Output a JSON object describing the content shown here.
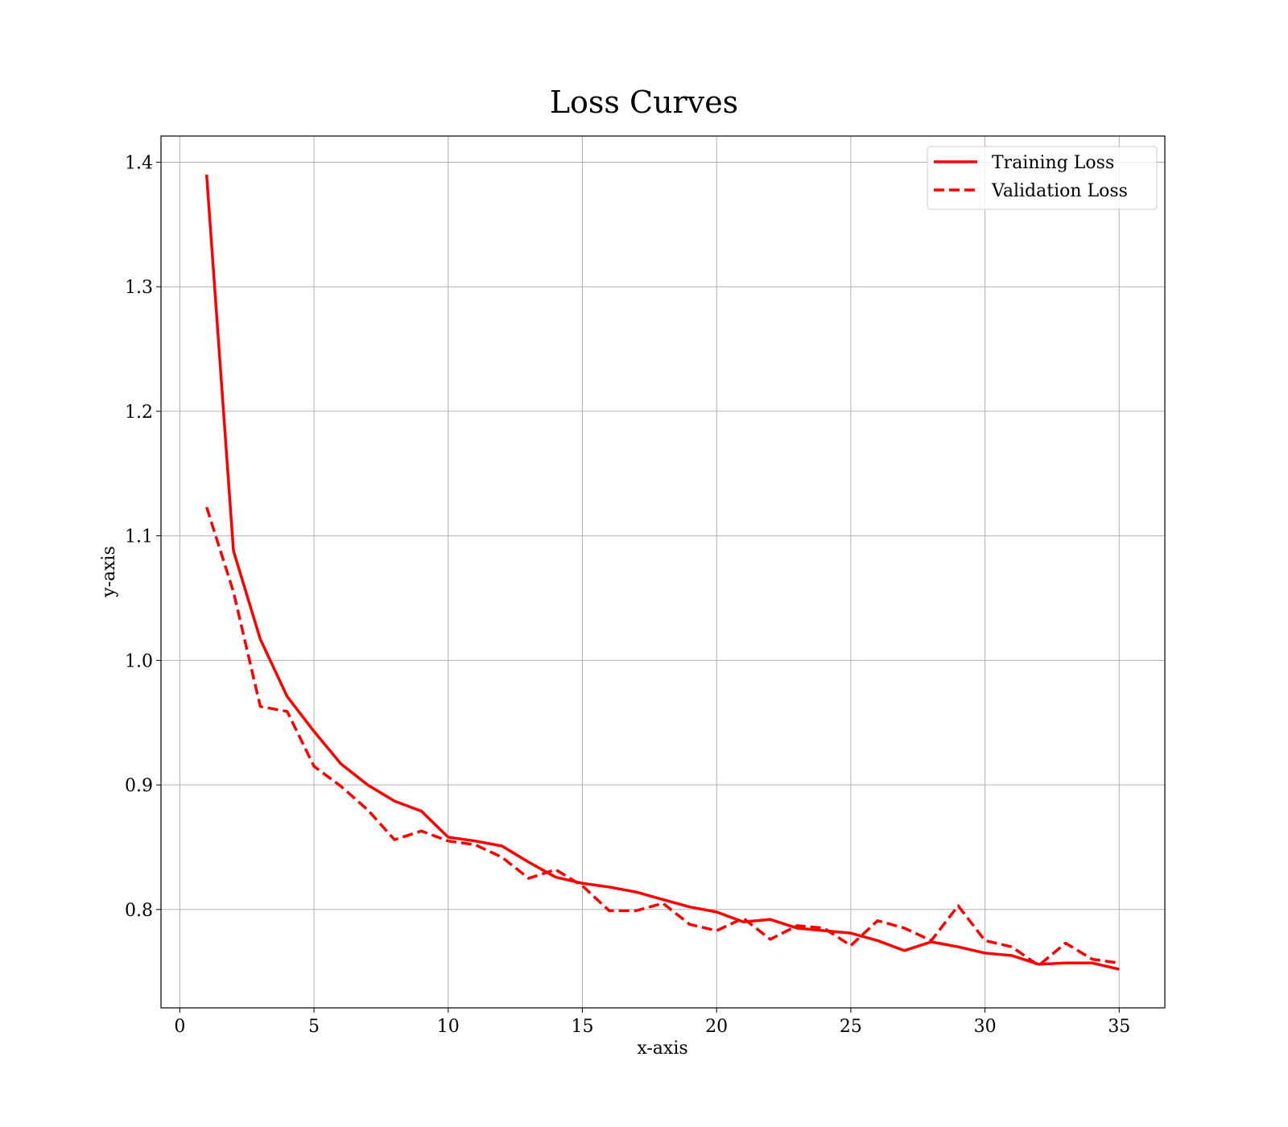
{
  "chart_data": {
    "type": "line",
    "title": "Loss Curves",
    "xlabel": "x-axis",
    "ylabel": "y-axis",
    "xlim": [
      -0.7,
      36.7
    ],
    "ylim": [
      0.721,
      1.421
    ],
    "xticks": [
      0,
      5,
      10,
      15,
      20,
      25,
      30,
      35
    ],
    "xtick_labels": [
      "0",
      "5",
      "10",
      "15",
      "20",
      "25",
      "30",
      "35"
    ],
    "yticks": [
      0.8,
      0.9,
      1.0,
      1.1,
      1.2,
      1.3,
      1.4
    ],
    "ytick_labels": [
      "0.8",
      "0.9",
      "1.0",
      "1.1",
      "1.2",
      "1.3",
      "1.4"
    ],
    "grid": true,
    "legend_position": "top-right",
    "x": [
      1,
      2,
      3,
      4,
      5,
      6,
      7,
      8,
      9,
      10,
      11,
      12,
      13,
      14,
      15,
      16,
      17,
      18,
      19,
      20,
      21,
      22,
      23,
      24,
      25,
      26,
      27,
      28,
      29,
      30,
      31,
      32,
      33,
      34,
      35
    ],
    "series": [
      {
        "name": "Training Loss",
        "style": "solid",
        "color": "#ff0000",
        "values": [
          1.39,
          1.088,
          1.017,
          0.971,
          0.943,
          0.917,
          0.9,
          0.887,
          0.879,
          0.858,
          0.855,
          0.851,
          0.838,
          0.826,
          0.821,
          0.818,
          0.814,
          0.808,
          0.802,
          0.798,
          0.79,
          0.792,
          0.785,
          0.783,
          0.781,
          0.775,
          0.767,
          0.774,
          0.77,
          0.765,
          0.763,
          0.756,
          0.757,
          0.757,
          0.752
        ]
      },
      {
        "name": "Validation Loss",
        "style": "dashed",
        "color": "#ff0000",
        "values": [
          1.123,
          1.055,
          0.963,
          0.959,
          0.915,
          0.899,
          0.88,
          0.856,
          0.863,
          0.855,
          0.852,
          0.842,
          0.825,
          0.832,
          0.819,
          0.799,
          0.799,
          0.805,
          0.788,
          0.783,
          0.793,
          0.776,
          0.787,
          0.785,
          0.771,
          0.791,
          0.785,
          0.775,
          0.803,
          0.775,
          0.77,
          0.755,
          0.773,
          0.76,
          0.757
        ]
      }
    ]
  }
}
